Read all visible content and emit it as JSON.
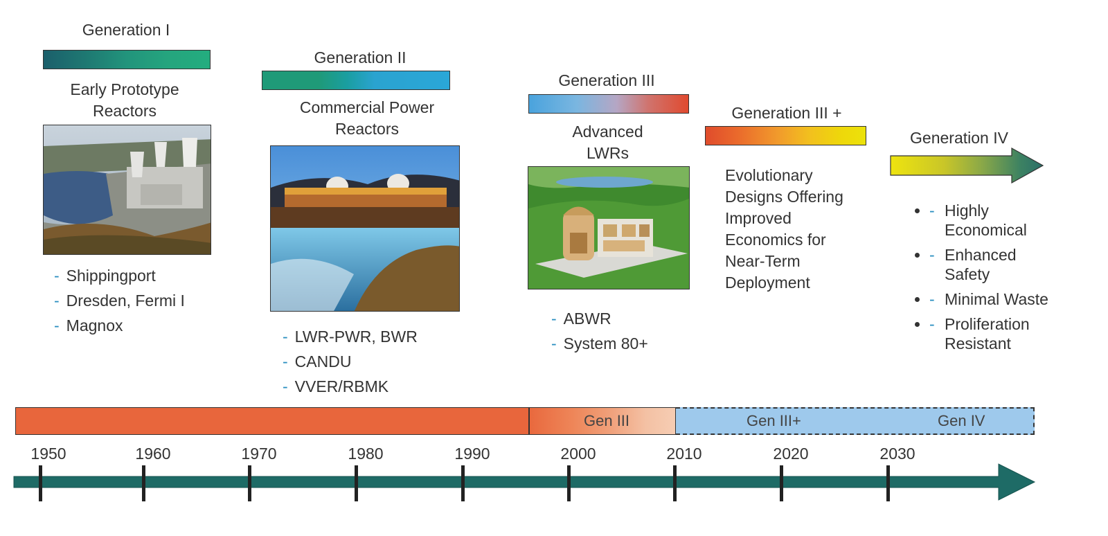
{
  "generations": [
    {
      "title": "Generation I",
      "desc": "Early Prototype Reactors",
      "items": [
        "Shippingport",
        "Dresden, Fermi I",
        "Magnox"
      ]
    },
    {
      "title": "Generation II",
      "desc": "Commercial Power Reactors",
      "items": [
        "LWR-PWR, BWR",
        "CANDU",
        "VVER/RBMK"
      ]
    },
    {
      "title": "Generation III",
      "desc": "Advanced LWRs",
      "items": [
        "ABWR",
        "System 80+"
      ]
    },
    {
      "title": "Generation III +",
      "desc": "Evolutionary Designs Offering Improved Economics for Near-Term Deployment"
    },
    {
      "title": "Generation IV",
      "items": [
        "Highly Economical",
        "Enhanced Safety",
        "Minimal Waste",
        "Proliferation Resistant"
      ]
    }
  ],
  "timeline": {
    "years": [
      "1950",
      "1960",
      "1970",
      "1980",
      "1990",
      "2000",
      "2010",
      "2020",
      "2030"
    ],
    "bands": [
      "Gen III",
      "Gen III+",
      "Gen IV"
    ],
    "dash": "-"
  },
  "colors": {
    "gen1_band": "#e8663c",
    "gen3_band": "#f1ae8e",
    "gen3plus_band": "#9ec9ec",
    "axis": "#1e6b66"
  }
}
